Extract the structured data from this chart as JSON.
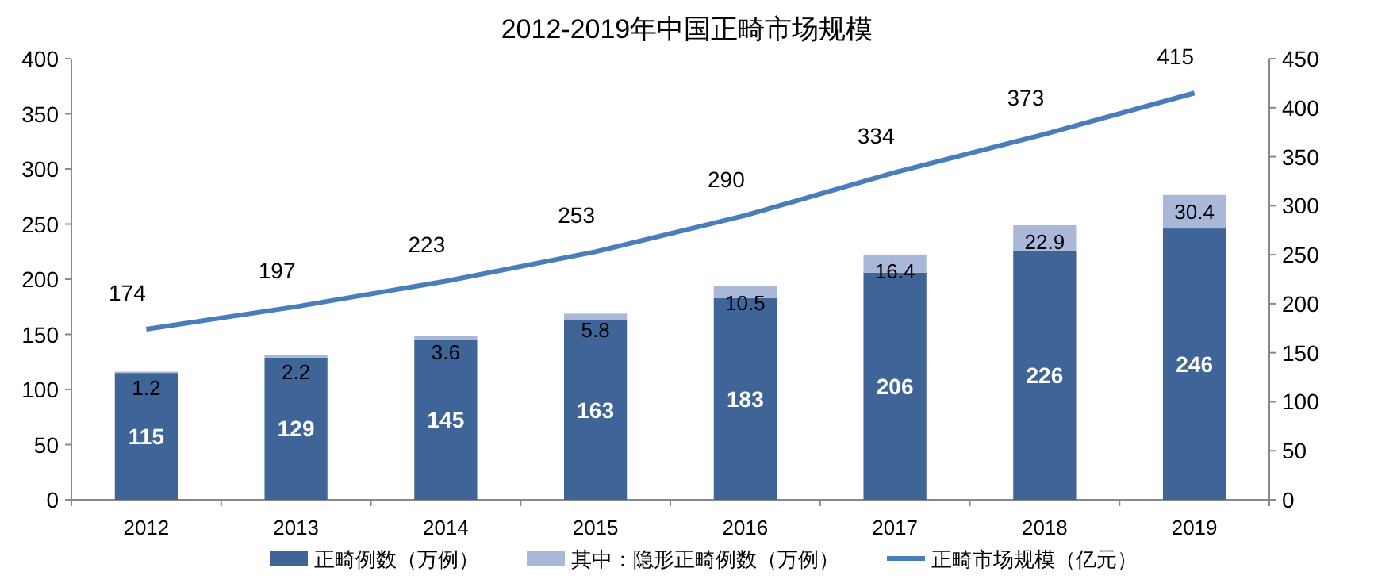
{
  "chart_data": {
    "type": "bar",
    "title": "2012-2019年中国正畸市场规模",
    "categories": [
      "2012",
      "2013",
      "2014",
      "2015",
      "2016",
      "2017",
      "2018",
      "2019"
    ],
    "stacked": true,
    "data_labels": true,
    "legend": "bottom",
    "ylim": [
      0,
      400
    ],
    "yticks": [
      0,
      50,
      100,
      150,
      200,
      250,
      300,
      350,
      400
    ],
    "y2lim": [
      0,
      450
    ],
    "y2ticks": [
      0,
      50,
      100,
      150,
      200,
      250,
      300,
      350,
      400,
      450
    ],
    "series": [
      {
        "name": "正畸例数（万例）",
        "color": "#3f6598",
        "values": [
          115,
          129,
          145,
          163,
          183,
          206,
          226,
          246
        ]
      },
      {
        "name": "其中：隐形正畸例数（万例）",
        "color": "#a9b8d9",
        "values": [
          1.2,
          2.2,
          3.6,
          5.8,
          10.5,
          16.4,
          22.9,
          30.4
        ]
      },
      {
        "name": "正畸市场规模（亿元）",
        "type": "line",
        "axis": "y2",
        "color": "#4a7ebb",
        "values": [
          174,
          197,
          223,
          253,
          290,
          334,
          373,
          415
        ]
      }
    ]
  }
}
